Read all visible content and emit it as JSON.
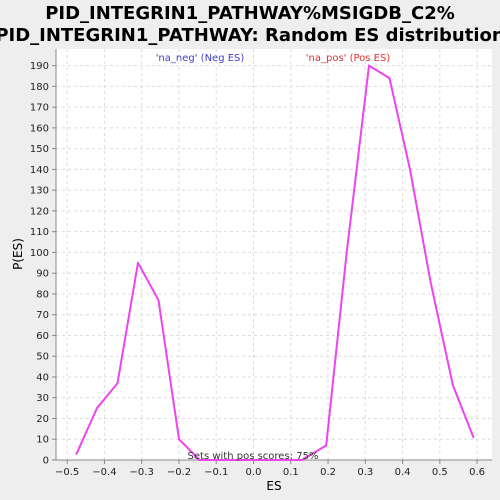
{
  "colors": {
    "line": "#ee44ee",
    "neg_label": "#4040cc",
    "pos_label": "#dd3333",
    "background": "#eeeeee",
    "plot_background": "#ffffff"
  },
  "chart_data": {
    "type": "line",
    "title_line1": "PID_INTEGRIN1_PATHWAY%MSIGDB_C2%",
    "title_line2": "PID_INTEGRIN1_PATHWAY: Random ES distribution",
    "xlabel": "ES",
    "ylabel": "P(ES)",
    "xlim": [
      -0.53,
      0.64
    ],
    "ylim": [
      0,
      198
    ],
    "grid": true,
    "x_ticks": [
      -0.5,
      -0.4,
      -0.3,
      -0.2,
      -0.1,
      0.0,
      0.1,
      0.2,
      0.3,
      0.4,
      0.5,
      0.6
    ],
    "x_tick_labels": [
      "−0.5",
      "−0.4",
      "−0.3",
      "−0.2",
      "−0.1",
      "0.0",
      "0.1",
      "0.2",
      "0.3",
      "0.4",
      "0.5",
      "0.6"
    ],
    "y_ticks": [
      0,
      10,
      20,
      30,
      40,
      50,
      60,
      70,
      80,
      90,
      100,
      110,
      120,
      130,
      140,
      150,
      160,
      170,
      180,
      190
    ],
    "series": [
      {
        "x": [
          -0.475,
          -0.42,
          -0.365,
          -0.31,
          -0.255,
          -0.2,
          -0.145,
          -0.09,
          -0.035,
          0.02,
          0.075,
          0.13,
          0.195,
          0.25,
          0.31,
          0.365,
          0.42,
          0.475,
          0.535,
          0.59
        ],
        "y": [
          3,
          25,
          37,
          95,
          77,
          10,
          0,
          0,
          0,
          0,
          0,
          0,
          7,
          100,
          190,
          184,
          140,
          86,
          36,
          11
        ]
      }
    ],
    "annotations": {
      "neg_label": "'na_neg' (Neg ES)",
      "pos_label": "'na_pos' (Pos ES)",
      "footer": "Sets with pos scores: 75%"
    }
  }
}
